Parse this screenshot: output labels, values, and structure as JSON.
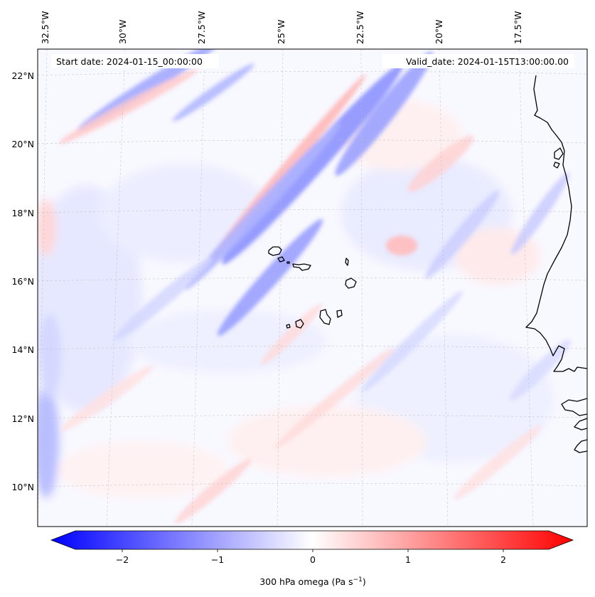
{
  "map": {
    "start_date": "Start date: 2024-01-15_00:00:00",
    "valid_date": "Valid_date: 2024-01-15T13:00:00.00",
    "lon_labels": [
      "32.5°W",
      "30°W",
      "27.5°W",
      "25°W",
      "22.5°W",
      "20°W",
      "17.5°W"
    ],
    "lat_labels": [
      "22°N",
      "20°N",
      "18°N",
      "16°N",
      "14°N",
      "12°N",
      "10°N"
    ],
    "colormap": [
      "#0000ff",
      "#ffffff",
      "#ff0000"
    ],
    "field_range": [
      -2.5,
      2.5
    ]
  },
  "colorbar": {
    "ticks": [
      "−2",
      "−1",
      "0",
      "1",
      "2"
    ],
    "label_main": "300 hPa omega (Pa s",
    "label_exp": "−1",
    "label_close": ")"
  }
}
